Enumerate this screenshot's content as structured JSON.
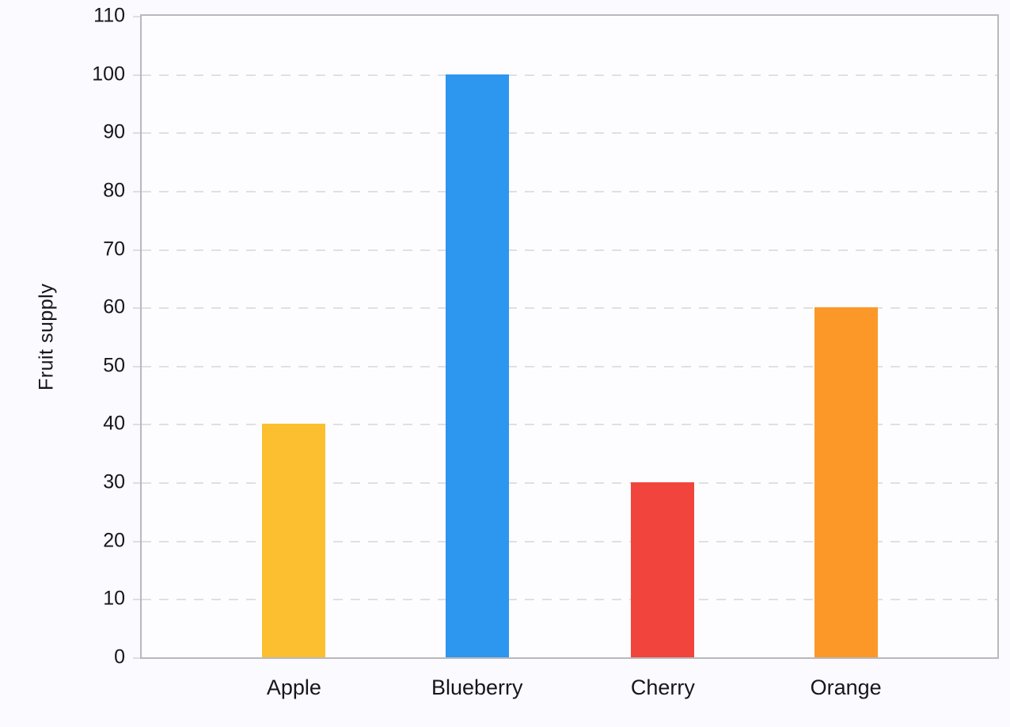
{
  "chart_data": {
    "type": "bar",
    "title": "",
    "xlabel": "",
    "ylabel": "Fruit supply",
    "categories": [
      "Apple",
      "Blueberry",
      "Cherry",
      "Orange"
    ],
    "values": [
      40,
      100,
      30,
      60
    ],
    "bar_colors": [
      "#FBBF2F",
      "#2D96EE",
      "#F0443D",
      "#FB9828"
    ],
    "ylim": [
      0,
      110
    ],
    "y_ticks": [
      0,
      10,
      20,
      30,
      40,
      50,
      60,
      70,
      80,
      90,
      100,
      110
    ],
    "grid": "horizontal-dashed",
    "legend_position": "none"
  },
  "colors": {
    "background": "#FAFAFF",
    "plot_background": "#FDFDFF",
    "axis_border": "#B9B9BD",
    "gridline": "#E0E0E4",
    "text": "#16161D"
  }
}
